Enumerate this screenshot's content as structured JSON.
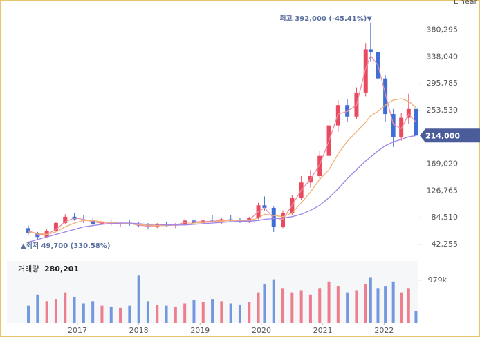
{
  "chart_data": {
    "type": "candlestick",
    "scale_mode": "Linear",
    "x": [
      2016.2,
      2016.35,
      2016.5,
      2016.65,
      2016.8,
      2016.95,
      2017.1,
      2017.25,
      2017.4,
      2017.55,
      2017.7,
      2017.85,
      2018.0,
      2018.15,
      2018.3,
      2018.45,
      2018.6,
      2018.75,
      2018.9,
      2019.05,
      2019.2,
      2019.35,
      2019.5,
      2019.65,
      2019.8,
      2019.95,
      2020.05,
      2020.2,
      2020.35,
      2020.5,
      2020.65,
      2020.8,
      2020.95,
      2021.1,
      2021.25,
      2021.4,
      2021.55,
      2021.7,
      2021.78,
      2021.9,
      2022.02,
      2022.15,
      2022.28,
      2022.4,
      2022.52
    ],
    "open": [
      68000,
      60000,
      54000,
      64000,
      76000,
      86000,
      82000,
      80000,
      74000,
      78000,
      74000,
      76000,
      74000,
      72000,
      70000,
      74000,
      72000,
      74000,
      80000,
      76000,
      80000,
      78000,
      82000,
      80000,
      78000,
      84000,
      104000,
      100000,
      70000,
      92000,
      116000,
      140000,
      150000,
      182000,
      230000,
      262000,
      244000,
      282000,
      350000,
      346000,
      304000,
      248000,
      212000,
      242000,
      256000
    ],
    "high": [
      72000,
      62000,
      66000,
      78000,
      90000,
      92000,
      88000,
      84000,
      80000,
      82000,
      78000,
      80000,
      78000,
      76000,
      76000,
      78000,
      76000,
      82000,
      84000,
      82000,
      88000,
      84000,
      88000,
      84000,
      86000,
      108000,
      118000,
      102000,
      96000,
      120000,
      150000,
      160000,
      190000,
      240000,
      270000,
      272000,
      290000,
      360000,
      392000,
      352000,
      310000,
      256000,
      250000,
      280000,
      262000
    ],
    "low": [
      58000,
      49700,
      52000,
      62000,
      74000,
      80000,
      76000,
      72000,
      70000,
      72000,
      70000,
      72000,
      70000,
      66000,
      68000,
      70000,
      68000,
      72000,
      74000,
      74000,
      76000,
      74000,
      78000,
      76000,
      76000,
      82000,
      96000,
      62000,
      68000,
      88000,
      112000,
      132000,
      146000,
      178000,
      220000,
      236000,
      240000,
      276000,
      330000,
      296000,
      236000,
      196000,
      206000,
      232000,
      198000
    ],
    "close": [
      60000,
      54000,
      64000,
      76000,
      86000,
      82000,
      80000,
      74000,
      78000,
      74000,
      76000,
      74000,
      72000,
      70000,
      74000,
      72000,
      74000,
      80000,
      76000,
      80000,
      78000,
      82000,
      80000,
      78000,
      84000,
      104000,
      100000,
      70000,
      92000,
      116000,
      140000,
      150000,
      182000,
      230000,
      262000,
      244000,
      282000,
      350000,
      346000,
      304000,
      248000,
      212000,
      242000,
      256000,
      214000
    ],
    "up_color": "#e84a5f",
    "down_color": "#3d6fd6",
    "moving_averages": [
      {
        "color": "#ec8ea3",
        "values": [
          64000,
          58000,
          58000,
          66000,
          78000,
          84000,
          82000,
          78000,
          76000,
          76000,
          75000,
          75000,
          73000,
          71000,
          72000,
          73000,
          73000,
          77000,
          78000,
          78000,
          79000,
          80000,
          81000,
          79000,
          81000,
          94000,
          100000,
          84000,
          82000,
          104000,
          128000,
          145000,
          168000,
          205000,
          248000,
          252000,
          262000,
          320000,
          340000,
          325000,
          280000,
          232000,
          225000,
          248000,
          235000
        ]
      },
      {
        "color": "#f2b27a",
        "values": [
          62000,
          60000,
          58000,
          62000,
          70000,
          76000,
          80000,
          80000,
          78000,
          77000,
          76000,
          75000,
          74000,
          73000,
          72000,
          72000,
          73000,
          74000,
          76000,
          77000,
          78000,
          79000,
          80000,
          80000,
          80000,
          84000,
          90000,
          88000,
          86000,
          92000,
          108000,
          125000,
          145000,
          160000,
          185000,
          205000,
          220000,
          235000,
          245000,
          252000,
          262000,
          270000,
          272000,
          268000,
          258000
        ]
      },
      {
        "color": "#a084e8",
        "values": [
          46000,
          50000,
          54000,
          58000,
          62000,
          66000,
          70000,
          72000,
          74000,
          75000,
          76000,
          76000,
          75000,
          74000,
          74000,
          73000,
          73000,
          73000,
          74000,
          75000,
          76000,
          77000,
          78000,
          79000,
          79000,
          80000,
          82000,
          83000,
          84000,
          86000,
          90000,
          96000,
          104000,
          116000,
          130000,
          146000,
          160000,
          174000,
          180000,
          190000,
          198000,
          204000,
          208000,
          212000,
          214000
        ]
      }
    ],
    "xlim": [
      2015.85,
      2022.56
    ],
    "xticks": [
      2017,
      2018,
      2019,
      2020,
      2021,
      2022
    ],
    "ylim": [
      22655,
      427775
    ],
    "yticks": [
      {
        "value": 42255,
        "label": "42,255"
      },
      {
        "value": 84510,
        "label": "84,510"
      },
      {
        "value": 126765,
        "label": "126,765"
      },
      {
        "value": 169020,
        "label": "169,020"
      },
      {
        "value": 253530,
        "label": "253,530"
      },
      {
        "value": 295785,
        "label": "295,785"
      },
      {
        "value": 338040,
        "label": "338,040"
      },
      {
        "value": 380295,
        "label": "380,295"
      }
    ],
    "last_price_label": "214,000",
    "high_annotation": "최고 392,000 (-45.41%)▼",
    "low_annotation": "▲최저 49,700 (330.58%)",
    "volume": {
      "title": "거래량",
      "current_label": "280,201",
      "values": [
        400000,
        650000,
        500000,
        550000,
        700000,
        600000,
        450000,
        500000,
        400000,
        380000,
        350000,
        400000,
        1100000,
        500000,
        420000,
        400000,
        380000,
        450000,
        520000,
        480000,
        550000,
        500000,
        450000,
        420000,
        480000,
        700000,
        900000,
        1000000,
        800000,
        700000,
        750000,
        650000,
        800000,
        950000,
        850000,
        700000,
        750000,
        900000,
        1050000,
        800000,
        850000,
        950000,
        700000,
        800000,
        280201
      ],
      "ylim": [
        0,
        1420000
      ],
      "yticks": [
        {
          "value": 979000,
          "label": "979k"
        }
      ]
    }
  }
}
